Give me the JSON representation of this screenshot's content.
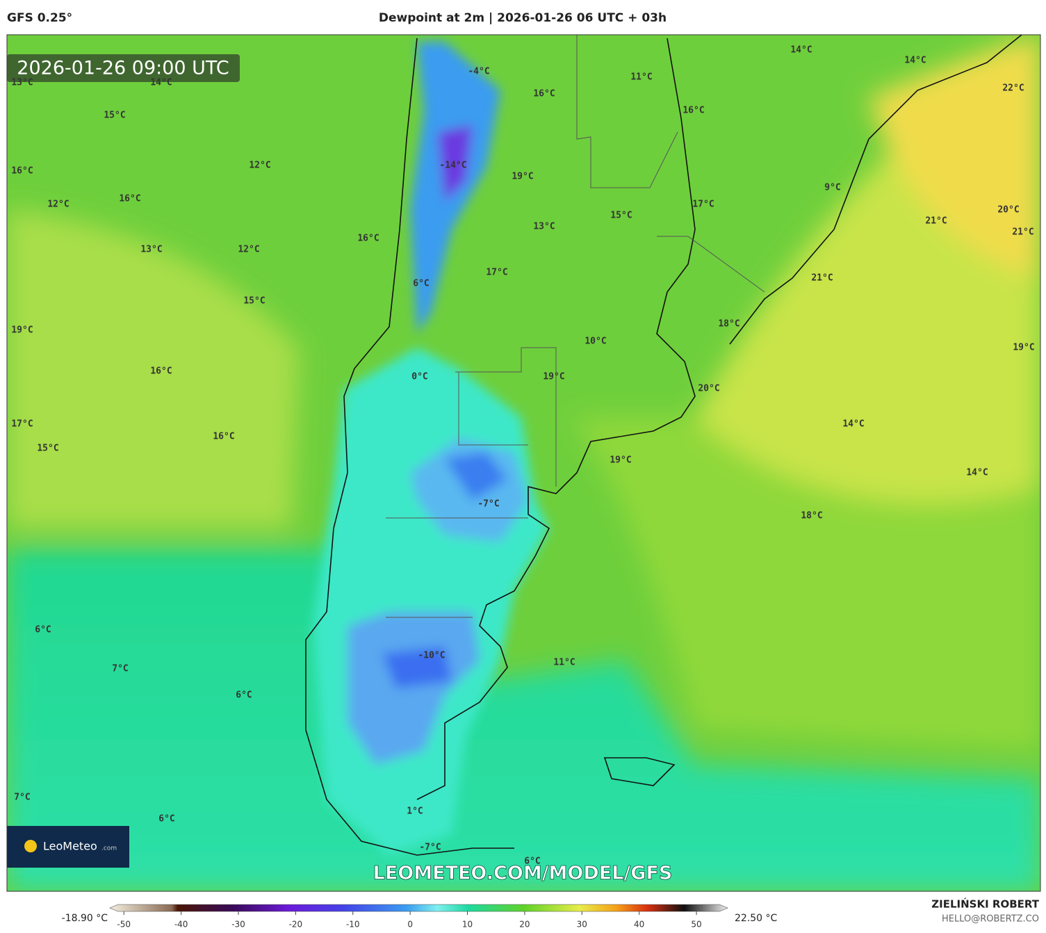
{
  "header": {
    "model": "GFS 0.25°",
    "title": "Dewpoint at 2m | 2026-01-26 06 UTC + 03h"
  },
  "map": {
    "valid_time": "2026-01-26 09:00 UTC",
    "watermark": "LEOMETEO.COM/MODEL/GFS",
    "logo": {
      "brand": "LeoMeteo",
      "suffix": ".com"
    },
    "labels": [
      "13°C",
      "14°C",
      "15°C",
      "16°C",
      "12°C",
      "12°C",
      "16°C",
      "13°C",
      "12°C",
      "16°C",
      "15°C",
      "19°C",
      "16°C",
      "17°C",
      "15°C",
      "16°C",
      "6°C",
      "7°C",
      "6°C",
      "7°C",
      "6°C",
      "-4°C",
      "16°C",
      "-14°C",
      "19°C",
      "13°C",
      "17°C",
      "6°C",
      "0°C",
      "19°C",
      "10°C",
      "15°C",
      "17°C",
      "11°C",
      "16°C",
      "14°C",
      "14°C",
      "22°C",
      "9°C",
      "20°C",
      "21°C",
      "21°C",
      "21°C",
      "18°C",
      "19°C",
      "20°C",
      "14°C",
      "14°C",
      "19°C",
      "18°C",
      "11°C",
      "-7°C",
      "-10°C",
      "1°C",
      "-7°C",
      "6°C"
    ]
  },
  "colorbar": {
    "min_label": "-18.90 °C",
    "max_label": "22.50 °C",
    "range": [
      -51,
      54
    ],
    "ticks": [
      -50,
      -40,
      -30,
      -20,
      -10,
      0,
      10,
      20,
      30,
      40,
      50
    ]
  },
  "footer": {
    "author": "ZIELIŃSKI ROBERT",
    "contact": "HELLO@ROBERTZ.CO"
  }
}
